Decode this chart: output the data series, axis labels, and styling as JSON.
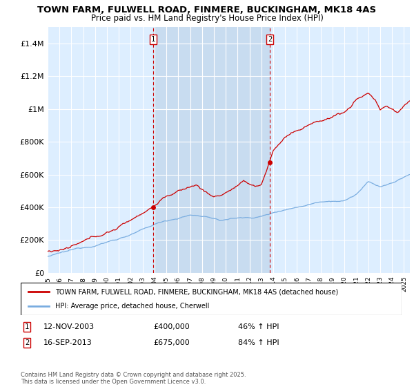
{
  "title": "TOWN FARM, FULWELL ROAD, FINMERE, BUCKINGHAM, MK18 4AS",
  "subtitle": "Price paid vs. HM Land Registry's House Price Index (HPI)",
  "red_label": "TOWN FARM, FULWELL ROAD, FINMERE, BUCKINGHAM, MK18 4AS (detached house)",
  "blue_label": "HPI: Average price, detached house, Cherwell",
  "annotation1_date": "12-NOV-2003",
  "annotation1_price": "£400,000",
  "annotation1_hpi": "46% ↑ HPI",
  "annotation2_date": "16-SEP-2013",
  "annotation2_price": "£675,000",
  "annotation2_hpi": "84% ↑ HPI",
  "footer": "Contains HM Land Registry data © Crown copyright and database right 2025.\nThis data is licensed under the Open Government Licence v3.0.",
  "sale1_x": 2003.88,
  "sale1_y": 400000,
  "sale2_x": 2013.71,
  "sale2_y": 675000,
  "background_color": "#ffffff",
  "plot_bg_color": "#ddeeff",
  "highlight_color": "#c8dcf0",
  "grid_color": "#ffffff",
  "red_color": "#cc0000",
  "blue_color": "#7aade0",
  "ylim": [
    0,
    1500000
  ],
  "xlim_start": 1995,
  "xlim_end": 2025.5
}
